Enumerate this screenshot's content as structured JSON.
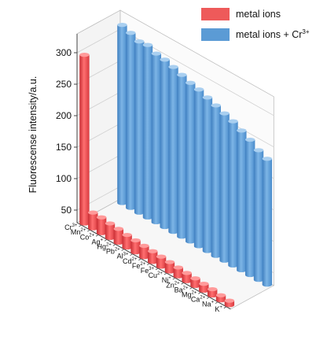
{
  "chart_data": {
    "type": "bar",
    "ylabel": "Fluorescense intensity/a.u.",
    "ylim": [
      30,
      330
    ],
    "yticks": [
      50,
      100,
      150,
      200,
      250,
      300
    ],
    "grid": true,
    "legend_position": "top-right",
    "categories": [
      {
        "sym": "Cr",
        "chg": "3+"
      },
      {
        "sym": "Mn",
        "chg": "2+"
      },
      {
        "sym": "Co",
        "chg": "2+"
      },
      {
        "sym": "Ag",
        "chg": "+"
      },
      {
        "sym": "Hg",
        "chg": "2+"
      },
      {
        "sym": "Pb",
        "chg": "2+"
      },
      {
        "sym": "Al",
        "chg": "3+"
      },
      {
        "sym": "Cd",
        "chg": "2+"
      },
      {
        "sym": "Fe",
        "chg": "2+"
      },
      {
        "sym": "Fe",
        "chg": "3+"
      },
      {
        "sym": "Cu",
        "chg": "2+"
      },
      {
        "sym": "Ni",
        "chg": "+"
      },
      {
        "sym": "Zn",
        "chg": "2+"
      },
      {
        "sym": "Ba",
        "chg": "2+"
      },
      {
        "sym": "Mg",
        "chg": "2+"
      },
      {
        "sym": "Ca",
        "chg": "2+"
      },
      {
        "sym": "Na",
        "chg": "+"
      },
      {
        "sym": "K",
        "chg": "+"
      }
    ],
    "series": [
      {
        "name": "metal ions",
        "color": "#ee5a5a",
        "values": [
          298,
          55,
          55,
          53,
          52,
          50,
          49,
          48,
          47,
          46,
          45,
          44,
          43,
          42,
          41,
          40,
          38,
          37
        ]
      },
      {
        "name": "metal ions + Cr",
        "name_sup": "3+",
        "color": "#5b9bd5",
        "values": [
          313,
          308,
          302,
          304,
          298,
          296,
          292,
          287,
          282,
          279,
          274,
          269,
          264,
          259,
          252,
          245,
          236,
          230
        ]
      }
    ]
  }
}
